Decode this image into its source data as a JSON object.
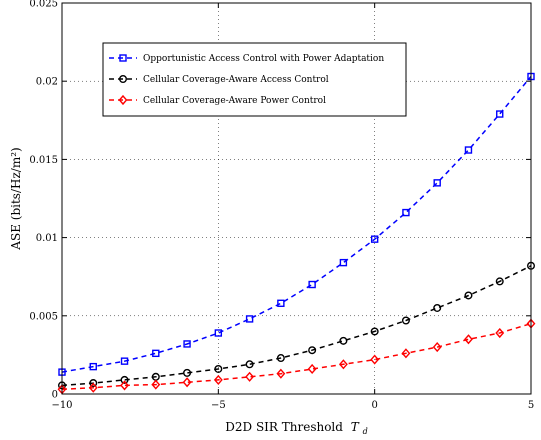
{
  "chart_data": {
    "type": "line",
    "xlabel": "D2D SIR Threshold",
    "xlabel_symbol": "T",
    "xlabel_subscript": "d",
    "ylabel": "ASE (bits/Hz/m²)",
    "xlim": [
      -10,
      5
    ],
    "ylim": [
      0,
      0.025
    ],
    "xticks": [
      -10,
      -5,
      0,
      5
    ],
    "xtick_labels": [
      "−10",
      "−5",
      "0",
      "5"
    ],
    "yticks": [
      0,
      0.005,
      0.01,
      0.015,
      0.02,
      0.025
    ],
    "ytick_labels": [
      "0",
      "0.005",
      "0.01",
      "0.015",
      "0.02",
      "0.025"
    ],
    "grid": true,
    "legend_position": "top-left",
    "x": [
      -10,
      -9,
      -8,
      -7,
      -6,
      -5,
      -4,
      -3,
      -2,
      -1,
      0,
      1,
      2,
      3,
      4,
      5
    ],
    "series": [
      {
        "name": "Opportunistic Access Control with Power Adaptation",
        "color": "#0000ff",
        "marker": "square",
        "values": [
          0.0014,
          0.00175,
          0.0021,
          0.0026,
          0.0032,
          0.0039,
          0.0048,
          0.0058,
          0.007,
          0.0084,
          0.0099,
          0.0116,
          0.0135,
          0.0156,
          0.0179,
          0.0203
        ]
      },
      {
        "name": "Cellular Coverage-Aware Access Control",
        "color": "#000000",
        "marker": "circle",
        "values": [
          0.00055,
          0.0007,
          0.0009,
          0.0011,
          0.00135,
          0.0016,
          0.0019,
          0.0023,
          0.0028,
          0.0034,
          0.004,
          0.0047,
          0.0055,
          0.0063,
          0.0072,
          0.0082
        ]
      },
      {
        "name": "Cellular Coverage-Aware Power Control",
        "color": "#ff0000",
        "marker": "diamond",
        "values": [
          0.0003,
          0.0004,
          0.00055,
          0.0006,
          0.00075,
          0.0009,
          0.0011,
          0.0013,
          0.0016,
          0.0019,
          0.0022,
          0.0026,
          0.003,
          0.0035,
          0.0039,
          0.0045
        ]
      }
    ]
  }
}
